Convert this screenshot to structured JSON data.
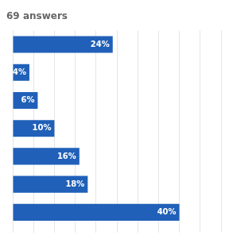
{
  "chart_data": {
    "type": "bar",
    "orientation": "horizontal",
    "title": "69 answers",
    "categories": [
      null,
      null,
      null,
      null,
      null,
      null,
      null
    ],
    "values": [
      24,
      4,
      6,
      10,
      16,
      18,
      40
    ],
    "value_labels": [
      "24%",
      "4%",
      "6%",
      "10%",
      "16%",
      "18%",
      "40%"
    ],
    "data_labels": true,
    "color": "#2060b8",
    "xlim": [
      0,
      50
    ],
    "xticks": [
      0,
      5,
      10,
      15,
      20,
      25,
      30,
      35,
      40,
      45,
      50
    ],
    "grid": true,
    "tick_labels": false
  }
}
